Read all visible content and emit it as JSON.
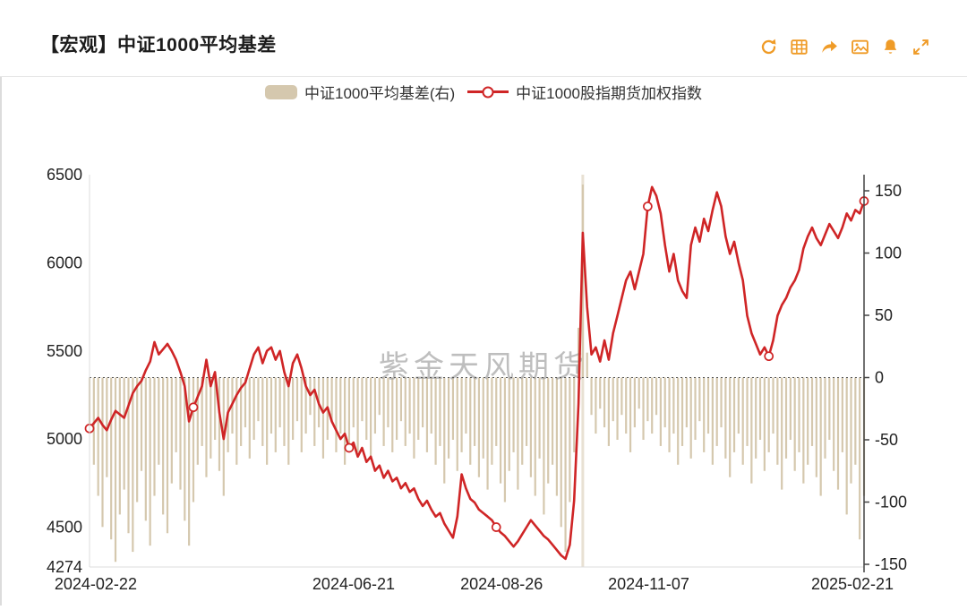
{
  "header": {
    "title": "【宏观】中证1000平均基差",
    "icon_color": "#ef9b27",
    "icons": [
      "refresh",
      "table",
      "share",
      "image",
      "bell",
      "fullscreen"
    ]
  },
  "legend": [
    {
      "label": "中证1000平均基差(右)",
      "type": "bar",
      "color": "#d5c8ae"
    },
    {
      "label": "中证1000股指期货加权指数",
      "type": "line",
      "color": "#cf2526"
    }
  ],
  "watermark": "紫金天风期货",
  "chart_data": {
    "type": "mixed",
    "title": "【宏观】中证1000平均基差",
    "x_ticks": [
      {
        "label": "2024-02-22",
        "pos": 0.008
      },
      {
        "label": "2024-06-21",
        "pos": 0.341
      },
      {
        "label": "2024-08-26",
        "pos": 0.532
      },
      {
        "label": "2024-11-07",
        "pos": 0.722
      },
      {
        "label": "2025-02-21",
        "pos": 0.985
      }
    ],
    "left_axis": {
      "min": 4274,
      "max": 6500,
      "ticks": [
        6500,
        6000,
        5500,
        5000,
        4500,
        4274
      ]
    },
    "right_axis": {
      "min": -150,
      "max": 150,
      "ticks": [
        150,
        100,
        50,
        0,
        -50,
        -100,
        -150
      ]
    },
    "zero_line": true,
    "highlight_index": 114,
    "series": [
      {
        "name": "中证1000平均基差(右)",
        "type": "bar",
        "axis": "right",
        "color": "#d5c8ae",
        "values": [
          -45,
          -70,
          -95,
          -120,
          -80,
          -130,
          -148,
          -110,
          -90,
          -125,
          -140,
          -100,
          -75,
          -115,
          -135,
          -95,
          -70,
          -110,
          -125,
          -85,
          -60,
          -90,
          -115,
          -135,
          -100,
          -70,
          -55,
          -80,
          -65,
          -50,
          -75,
          -95,
          -60,
          -45,
          -70,
          -55,
          -40,
          -65,
          -50,
          -35,
          -55,
          -70,
          -45,
          -60,
          -40,
          -55,
          -70,
          -50,
          -35,
          -60,
          -45,
          -30,
          -55,
          -40,
          -65,
          -50,
          -35,
          -60,
          -45,
          -70,
          -55,
          -40,
          -60,
          -35,
          -50,
          -65,
          -45,
          -30,
          -55,
          -40,
          -60,
          -50,
          -35,
          -55,
          -45,
          -65,
          -50,
          -40,
          -60,
          -45,
          -70,
          -55,
          -85,
          -65,
          -50,
          -75,
          -60,
          -45,
          -70,
          -55,
          -80,
          -65,
          -90,
          -70,
          -55,
          -85,
          -100,
          -75,
          -60,
          -90,
          -70,
          -55,
          -80,
          -95,
          -65,
          -110,
          -85,
          -70,
          -95,
          -120,
          -140,
          -100,
          -60,
          40,
          155,
          20,
          -30,
          -45,
          -25,
          -40,
          -55,
          -35,
          -50,
          -30,
          -45,
          -60,
          -40,
          -25,
          -50,
          -35,
          -45,
          -30,
          -55,
          -40,
          -60,
          -45,
          -70,
          -55,
          -40,
          -65,
          -50,
          -35,
          -60,
          -45,
          -70,
          -55,
          -40,
          -65,
          -80,
          -60,
          -45,
          -70,
          -55,
          -85,
          -65,
          -50,
          -75,
          -60,
          -45,
          -70,
          -90,
          -65,
          -50,
          -75,
          -60,
          -85,
          -70,
          -55,
          -80,
          -95,
          -65,
          -50,
          -75,
          -90,
          -60,
          -110,
          -85,
          -70,
          -130,
          -95
        ]
      },
      {
        "name": "中证1000股指期货加权指数",
        "type": "line",
        "axis": "left",
        "color": "#cf2526",
        "marker_indices": [
          0,
          24,
          60,
          94,
          129,
          157,
          179
        ],
        "values": [
          5060,
          5090,
          5120,
          5080,
          5050,
          5110,
          5160,
          5140,
          5120,
          5190,
          5260,
          5300,
          5330,
          5390,
          5440,
          5550,
          5480,
          5510,
          5540,
          5500,
          5450,
          5380,
          5300,
          5100,
          5180,
          5240,
          5300,
          5450,
          5300,
          5380,
          5150,
          5000,
          5150,
          5200,
          5250,
          5290,
          5320,
          5400,
          5480,
          5520,
          5430,
          5500,
          5520,
          5450,
          5500,
          5380,
          5300,
          5430,
          5480,
          5400,
          5300,
          5250,
          5280,
          5200,
          5150,
          5180,
          5100,
          5050,
          5000,
          5030,
          4950,
          4980,
          4900,
          4950,
          4870,
          4900,
          4820,
          4850,
          4780,
          4820,
          4760,
          4780,
          4720,
          4750,
          4700,
          4720,
          4660,
          4620,
          4650,
          4600,
          4560,
          4580,
          4520,
          4480,
          4440,
          4560,
          4800,
          4720,
          4660,
          4640,
          4600,
          4580,
          4560,
          4540,
          4500,
          4470,
          4450,
          4420,
          4390,
          4420,
          4460,
          4500,
          4540,
          4510,
          4480,
          4450,
          4430,
          4400,
          4370,
          4340,
          4320,
          4400,
          4650,
          5200,
          6170,
          5750,
          5480,
          5520,
          5440,
          5560,
          5450,
          5600,
          5700,
          5800,
          5900,
          5950,
          5850,
          5950,
          6050,
          6320,
          6430,
          6380,
          6280,
          6100,
          5950,
          6050,
          5900,
          5840,
          5800,
          6100,
          6200,
          6120,
          6250,
          6180,
          6300,
          6400,
          6320,
          6150,
          6050,
          6120,
          6000,
          5900,
          5700,
          5600,
          5540,
          5480,
          5520,
          5470,
          5560,
          5700,
          5760,
          5800,
          5860,
          5900,
          5960,
          6080,
          6150,
          6200,
          6140,
          6100,
          6160,
          6220,
          6180,
          6140,
          6200,
          6280,
          6240,
          6300,
          6280,
          6350
        ]
      }
    ]
  }
}
